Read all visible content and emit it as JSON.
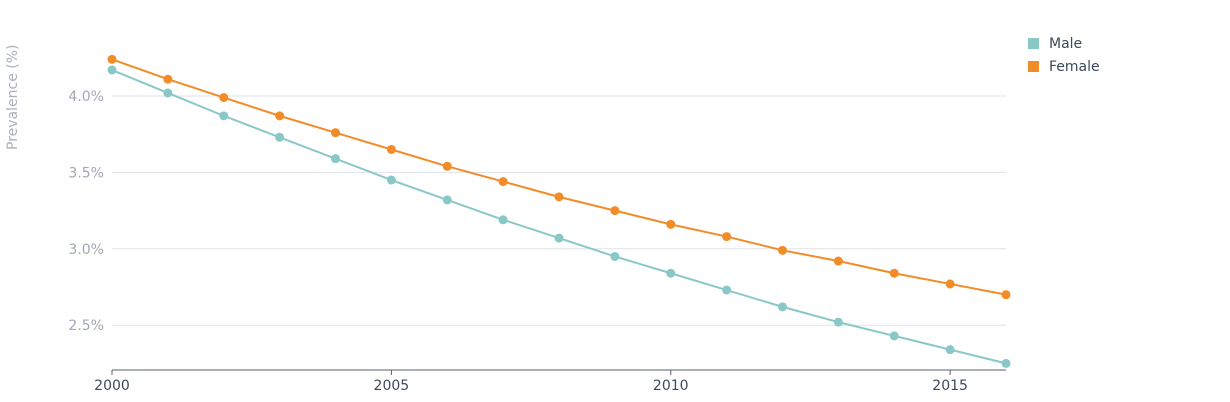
{
  "chart_data": {
    "type": "line",
    "ylabel": "Prevalence (%)",
    "x": [
      2000,
      2001,
      2002,
      2003,
      2004,
      2005,
      2006,
      2007,
      2008,
      2009,
      2010,
      2011,
      2012,
      2013,
      2014,
      2015,
      2016
    ],
    "x_ticks": [
      2000,
      2005,
      2010,
      2015
    ],
    "y_ticks": [
      2.5,
      3.0,
      3.5,
      4.0
    ],
    "y_tick_labels": [
      "2.5%",
      "3.0%",
      "3.5%",
      "4.0%"
    ],
    "ylim": [
      2.2,
      4.4
    ],
    "xlim": [
      2000,
      2016
    ],
    "grid": true,
    "legend_position": "top-right",
    "series": [
      {
        "name": "Male",
        "color": "#8ac8c8",
        "values": [
          4.17,
          4.02,
          3.87,
          3.73,
          3.59,
          3.45,
          3.32,
          3.19,
          3.07,
          2.95,
          2.84,
          2.73,
          2.62,
          2.52,
          2.43,
          2.34,
          2.25
        ]
      },
      {
        "name": "Female",
        "color": "#f28c28",
        "values": [
          4.24,
          4.11,
          3.99,
          3.87,
          3.76,
          3.65,
          3.54,
          3.44,
          3.34,
          3.25,
          3.16,
          3.08,
          2.99,
          2.92,
          2.84,
          2.77,
          2.7
        ]
      }
    ]
  }
}
